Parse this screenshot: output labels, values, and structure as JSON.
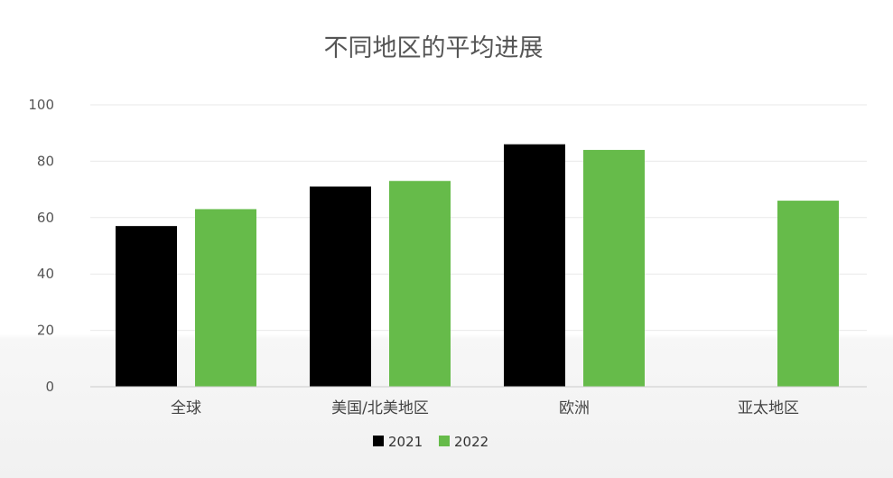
{
  "colors": {
    "series_2021": "#000000",
    "series_2022": "#66bb4a",
    "grid": "#e9e9e9",
    "axis": "#cccccc"
  },
  "chart_data": {
    "type": "bar",
    "title": "不同地区的平均进展",
    "categories": [
      "全球",
      "美国/北美地区",
      "欧洲",
      "亚太地区"
    ],
    "series": [
      {
        "name": "2021",
        "values": [
          57,
          71,
          86,
          null
        ]
      },
      {
        "name": "2022",
        "values": [
          63,
          73,
          84,
          66
        ]
      }
    ],
    "ylim": [
      0,
      100
    ],
    "yticks": [
      0,
      20,
      40,
      60,
      80,
      100
    ],
    "grid": true,
    "legend": "bottom"
  }
}
